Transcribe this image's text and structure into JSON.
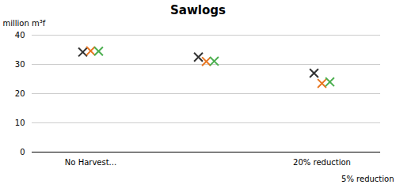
{
  "chart_data": {
    "type": "scatter",
    "title": "Sawlogs",
    "ylabel": "million m³f",
    "xlabel": "5% reduction",
    "categories": [
      "No Harvest...",
      null,
      "20% reduction"
    ],
    "series": [
      {
        "color": "#333333",
        "values": [
          34.2,
          32.5,
          27.0
        ]
      },
      {
        "color": "#E87722",
        "values": [
          34.6,
          31.0,
          23.5
        ]
      },
      {
        "color": "#4CAF50",
        "values": [
          34.5,
          31.1,
          24.0
        ]
      }
    ],
    "marker": "x",
    "ylim": [
      0,
      40
    ],
    "yticks": [
      0,
      10,
      20,
      30,
      40
    ],
    "grid": true
  }
}
